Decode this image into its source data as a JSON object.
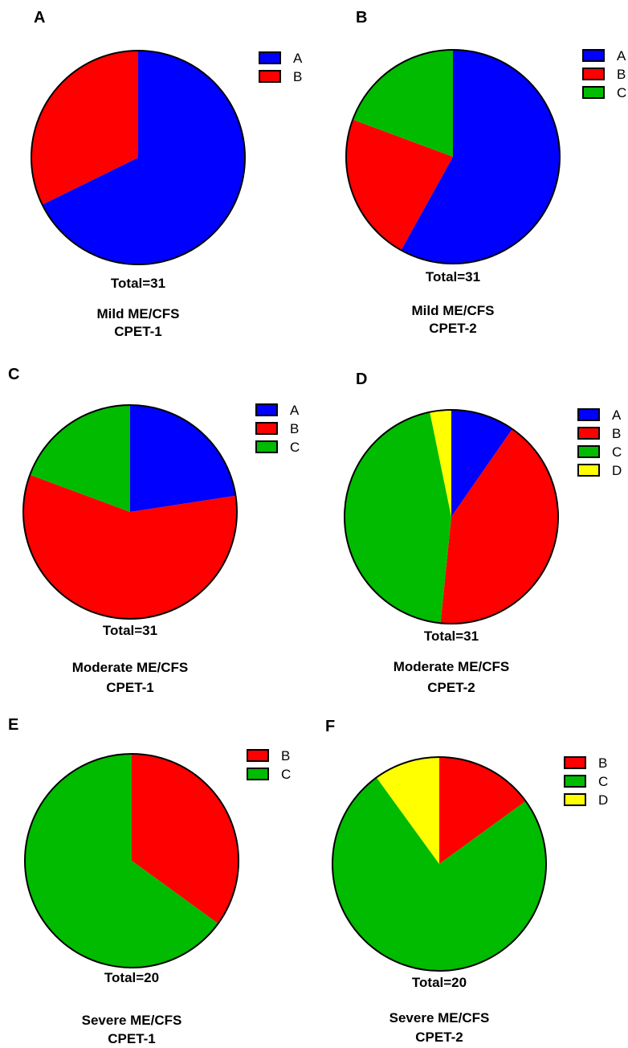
{
  "colors": {
    "A": "#0000ff",
    "B": "#ff0000",
    "C": "#00bb00",
    "D": "#ffff00"
  },
  "chart_data": [
    {
      "type": "pie",
      "panel": "A",
      "categories": [
        "A",
        "B"
      ],
      "values": [
        21,
        10
      ],
      "total": "Total=31",
      "title": [
        "Mild ME/CFS",
        "CPET-1"
      ]
    },
    {
      "type": "pie",
      "panel": "B",
      "categories": [
        "A",
        "B",
        "C"
      ],
      "values": [
        18,
        7,
        6
      ],
      "total": "Total=31",
      "title": [
        "Mild ME/CFS",
        "CPET-2"
      ]
    },
    {
      "type": "pie",
      "panel": "C",
      "categories": [
        "A",
        "B",
        "C"
      ],
      "values": [
        7,
        18,
        6
      ],
      "total": "Total=31",
      "title": [
        "Moderate ME/CFS",
        "CPET-1"
      ]
    },
    {
      "type": "pie",
      "panel": "D",
      "categories": [
        "A",
        "B",
        "C",
        "D"
      ],
      "values": [
        3,
        13,
        14,
        1
      ],
      "total": "Total=31",
      "title": [
        "Moderate ME/CFS",
        "CPET-2"
      ]
    },
    {
      "type": "pie",
      "panel": "E",
      "categories": [
        "B",
        "C"
      ],
      "values": [
        7,
        13
      ],
      "total": "Total=20",
      "title": [
        "Severe ME/CFS",
        "CPET-1"
      ]
    },
    {
      "type": "pie",
      "panel": "F",
      "categories": [
        "B",
        "C",
        "D"
      ],
      "values": [
        3,
        15,
        2
      ],
      "total": "Total=20",
      "title": [
        "Severe ME/CFS",
        "CPET-2"
      ]
    }
  ]
}
